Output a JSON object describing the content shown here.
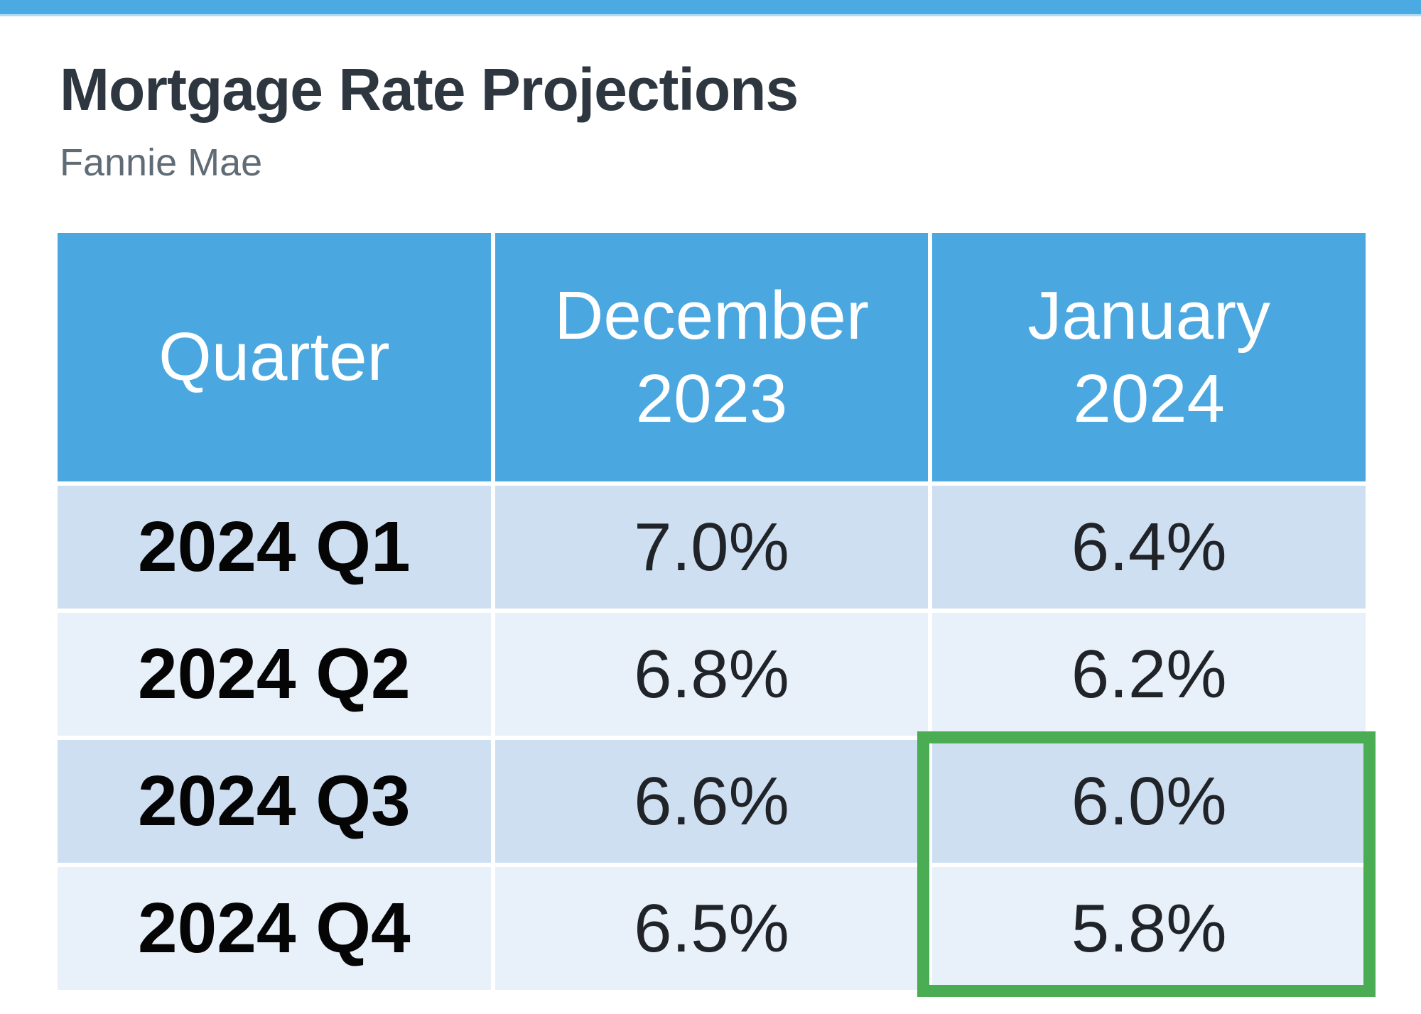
{
  "header": {
    "title": "Mortgage Rate Projections",
    "subtitle": "Fannie Mae"
  },
  "colors": {
    "top_bar": "#4baae2",
    "table_header": "#4aa7e0",
    "row_odd": "#cfdff2",
    "row_even": "#e8f0fa",
    "highlight_green": "#4bad53"
  },
  "table": {
    "columns": [
      {
        "line1": "Quarter",
        "line2": ""
      },
      {
        "line1": "December",
        "line2": "2023"
      },
      {
        "line1": "January",
        "line2": "2024"
      }
    ],
    "rows": [
      {
        "quarter": "2024 Q1",
        "dec": "7.0%",
        "jan": "6.4%"
      },
      {
        "quarter": "2024 Q2",
        "dec": "6.8%",
        "jan": "6.2%"
      },
      {
        "quarter": "2024 Q3",
        "dec": "6.6%",
        "jan": "6.0%"
      },
      {
        "quarter": "2024 Q4",
        "dec": "6.5%",
        "jan": "5.8%"
      }
    ]
  },
  "chart_data": {
    "type": "table",
    "title": "Mortgage Rate Projections",
    "subtitle": "Fannie Mae",
    "columns": [
      "Quarter",
      "December 2023",
      "January 2024"
    ],
    "categories": [
      "2024 Q1",
      "2024 Q2",
      "2024 Q3",
      "2024 Q4"
    ],
    "series": [
      {
        "name": "December 2023",
        "values": [
          7.0,
          6.8,
          6.6,
          6.5
        ]
      },
      {
        "name": "January 2024",
        "values": [
          6.4,
          6.2,
          6.0,
          5.8
        ]
      }
    ],
    "rows": [
      [
        "2024 Q1",
        "7.0%",
        "6.4%"
      ],
      [
        "2024 Q2",
        "6.8%",
        "6.2%"
      ],
      [
        "2024 Q3",
        "6.6%",
        "6.0%"
      ],
      [
        "2024 Q4",
        "6.5%",
        "5.8%"
      ]
    ],
    "annotations": [
      "Green outline highlights the January 2024 projections for 2024 Q3 (6.0%) and 2024 Q4 (5.8%)"
    ]
  }
}
